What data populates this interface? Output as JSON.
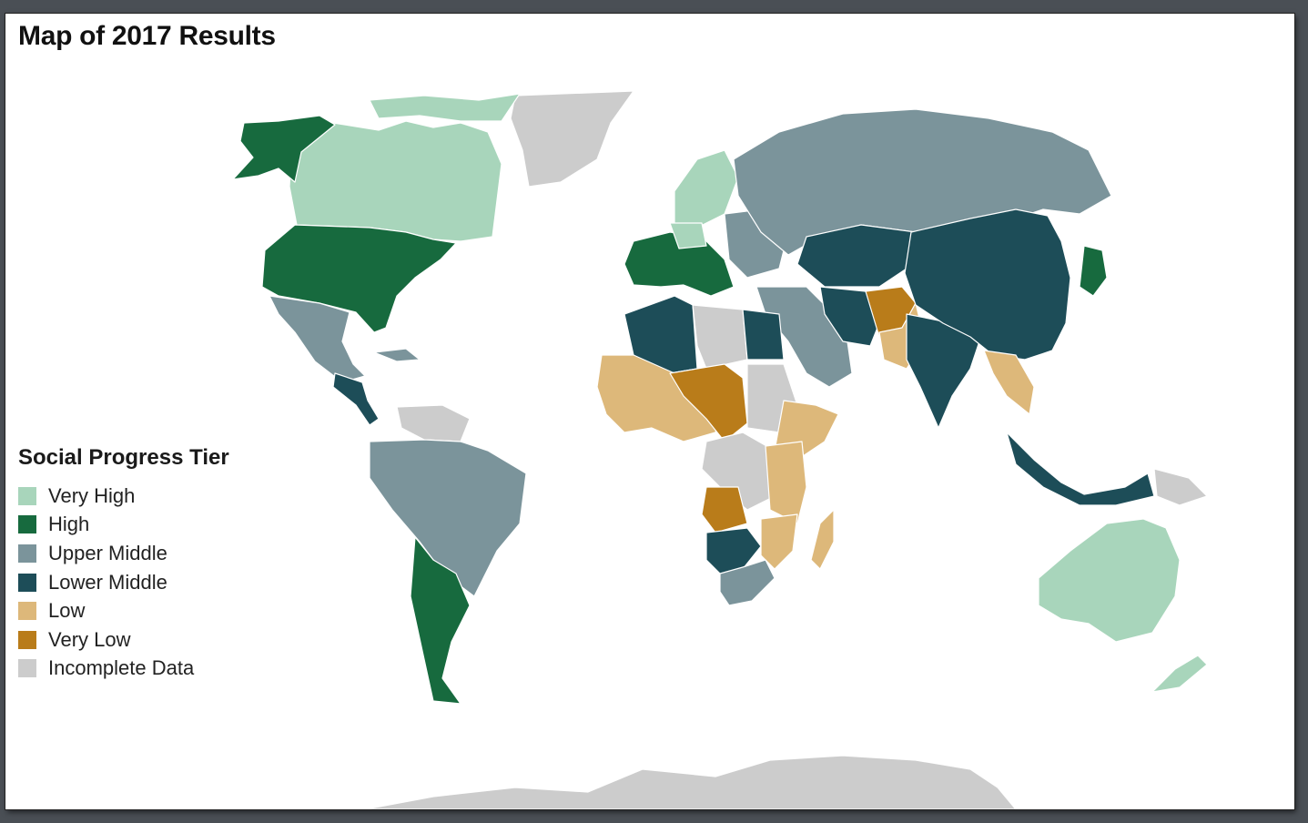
{
  "title": "Map of 2017 Results",
  "legend": {
    "title": "Social Progress Tier",
    "items": [
      {
        "label": "Very High",
        "color": "#a8d5bb",
        "icon": "very-high-swatch-icon"
      },
      {
        "label": "High",
        "color": "#176a3e",
        "icon": "high-swatch-icon"
      },
      {
        "label": "Upper Middle",
        "color": "#7b949b",
        "icon": "upper-middle-swatch-icon"
      },
      {
        "label": "Lower Middle",
        "color": "#1d4d58",
        "icon": "lower-middle-swatch-icon"
      },
      {
        "label": "Low",
        "color": "#ddb87a",
        "icon": "low-swatch-icon"
      },
      {
        "label": "Very Low",
        "color": "#b97c1a",
        "icon": "very-low-swatch-icon"
      },
      {
        "label": "Incomplete Data",
        "color": "#cccccc",
        "icon": "incomplete-data-swatch-icon"
      }
    ]
  }
}
